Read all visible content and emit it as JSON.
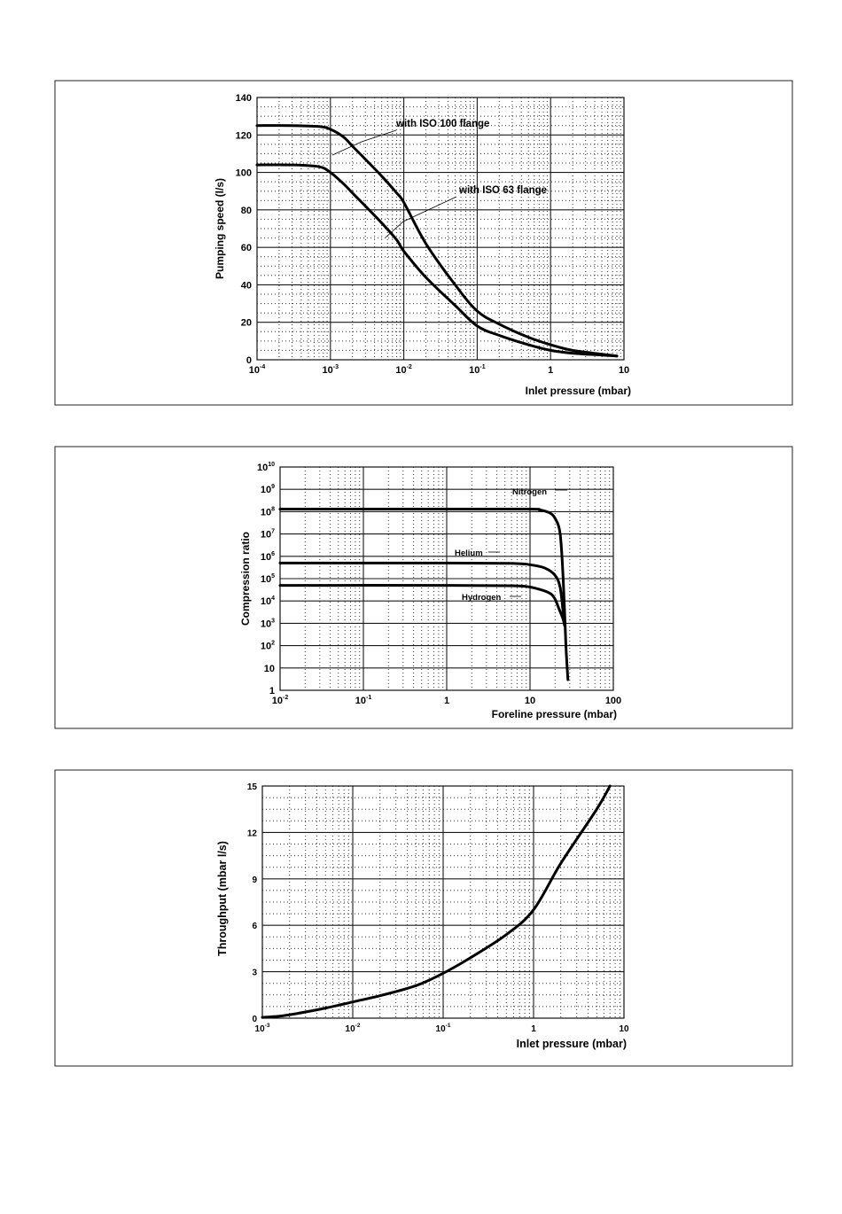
{
  "chart_data": [
    {
      "type": "line",
      "xscale": "log",
      "xlim": [
        0.0001,
        10
      ],
      "ylim": [
        0,
        140
      ],
      "xlabel": "Inlet pressure (mbar)",
      "ylabel": "Pumping speed (l/s)",
      "x_ticks": [
        {
          "value": 0.0001,
          "base": "10",
          "exp": "-4"
        },
        {
          "value": 0.001,
          "base": "10",
          "exp": "-3"
        },
        {
          "value": 0.01,
          "base": "10",
          "exp": "-2"
        },
        {
          "value": 0.1,
          "base": "10",
          "exp": "-1"
        },
        {
          "value": 1,
          "base": "1",
          "exp": ""
        },
        {
          "value": 10,
          "base": "10",
          "exp": ""
        }
      ],
      "y_ticks": [
        {
          "value": 0,
          "label": "0"
        },
        {
          "value": 20,
          "label": "20"
        },
        {
          "value": 40,
          "label": "40"
        },
        {
          "value": 60,
          "label": "60"
        },
        {
          "value": 80,
          "label": "80"
        },
        {
          "value": 100,
          "label": "100"
        },
        {
          "value": 120,
          "label": "120"
        },
        {
          "value": 140,
          "label": "140"
        }
      ],
      "series": [
        {
          "name": "with ISO 100 flange",
          "x": [
            0.0001,
            0.0003,
            0.0007,
            0.001,
            0.0015,
            0.002,
            0.003,
            0.005,
            0.008,
            0.01,
            0.02,
            0.05,
            0.1,
            0.2,
            0.5,
            1,
            2,
            5,
            8
          ],
          "y": [
            125,
            125,
            124.5,
            123,
            119,
            114,
            107,
            98,
            89,
            84,
            62,
            40,
            26,
            19,
            12,
            8,
            5,
            3,
            2
          ]
        },
        {
          "name": "with ISO 63 flange",
          "x": [
            0.0001,
            0.0003,
            0.0007,
            0.001,
            0.0015,
            0.002,
            0.003,
            0.005,
            0.008,
            0.01,
            0.02,
            0.05,
            0.1,
            0.2,
            0.5,
            1,
            2,
            5,
            8
          ],
          "y": [
            104,
            104,
            103,
            100,
            94,
            89,
            82,
            73,
            64,
            58,
            44,
            29,
            18,
            13,
            8,
            5,
            3.5,
            2.5,
            2
          ]
        }
      ]
    },
    {
      "type": "line",
      "xscale": "log",
      "yscale": "log",
      "xlim": [
        0.01,
        100
      ],
      "ylim": [
        1,
        10000000000
      ],
      "xlabel": "Foreline pressure (mbar)",
      "ylabel": "Compression ratio",
      "x_ticks": [
        {
          "value": 0.01,
          "base": "10",
          "exp": "-2"
        },
        {
          "value": 0.1,
          "base": "10",
          "exp": "-1"
        },
        {
          "value": 1,
          "base": "1",
          "exp": ""
        },
        {
          "value": 10,
          "base": "10",
          "exp": ""
        },
        {
          "value": 100,
          "base": "100",
          "exp": ""
        }
      ],
      "y_ticks": [
        {
          "value": 1,
          "base": "1",
          "exp": ""
        },
        {
          "value": 10,
          "base": "10",
          "exp": ""
        },
        {
          "value": 100,
          "base": "10",
          "exp": "2"
        },
        {
          "value": 1000,
          "base": "10",
          "exp": "3"
        },
        {
          "value": 10000,
          "base": "10",
          "exp": "4"
        },
        {
          "value": 100000,
          "base": "10",
          "exp": "5"
        },
        {
          "value": 1000000,
          "base": "10",
          "exp": "6"
        },
        {
          "value": 10000000,
          "base": "10",
          "exp": "7"
        },
        {
          "value": 100000000,
          "base": "10",
          "exp": "8"
        },
        {
          "value": 1000000000,
          "base": "10",
          "exp": "9"
        },
        {
          "value": 10000000000,
          "base": "10",
          "exp": "10"
        }
      ],
      "series": [
        {
          "name": "Nitrogen",
          "x": [
            0.01,
            1,
            10,
            13,
            17,
            20,
            23,
            25,
            27,
            28.5
          ],
          "y": [
            130000000,
            130000000,
            130000000,
            120000000,
            90000000,
            50000000,
            10000000,
            100000,
            100,
            3
          ]
        },
        {
          "name": "Helium",
          "x": [
            0.01,
            1,
            6,
            10,
            15,
            20,
            23,
            25,
            26
          ],
          "y": [
            500000,
            500000,
            480000,
            420000,
            300000,
            140000,
            40000,
            3000,
            800
          ]
        },
        {
          "name": "Hydrogen",
          "x": [
            0.01,
            1,
            6,
            10,
            15,
            18,
            20,
            22,
            25,
            26
          ],
          "y": [
            50000,
            50000,
            48000,
            42000,
            28000,
            20000,
            12000,
            5000,
            1500,
            800
          ]
        }
      ]
    },
    {
      "type": "line",
      "xscale": "log",
      "xlim": [
        0.001,
        10
      ],
      "ylim": [
        0,
        15
      ],
      "xlabel": "Inlet pressure (mbar)",
      "ylabel": "Throughput (mbar l/s)",
      "x_ticks": [
        {
          "value": 0.001,
          "base": "10",
          "exp": "-3"
        },
        {
          "value": 0.01,
          "base": "10",
          "exp": "-2"
        },
        {
          "value": 0.1,
          "base": "10",
          "exp": "-1"
        },
        {
          "value": 1,
          "base": "1",
          "exp": ""
        },
        {
          "value": 10,
          "base": "10",
          "exp": ""
        }
      ],
      "y_ticks": [
        {
          "value": 0,
          "label": "0"
        },
        {
          "value": 3,
          "label": "3"
        },
        {
          "value": 6,
          "label": "6"
        },
        {
          "value": 9,
          "label": "9"
        },
        {
          "value": 12,
          "label": "12"
        },
        {
          "value": 15,
          "label": "15"
        }
      ],
      "series": [
        {
          "name": "",
          "x": [
            0.001,
            0.0015,
            0.002,
            0.003,
            0.005,
            0.01,
            0.02,
            0.05,
            0.1,
            0.2,
            0.5,
            1,
            2,
            5,
            7
          ],
          "y": [
            0.05,
            0.12,
            0.22,
            0.4,
            0.65,
            1.05,
            1.45,
            2.1,
            2.9,
            3.9,
            5.4,
            7,
            10,
            13.5,
            15
          ]
        }
      ]
    }
  ]
}
